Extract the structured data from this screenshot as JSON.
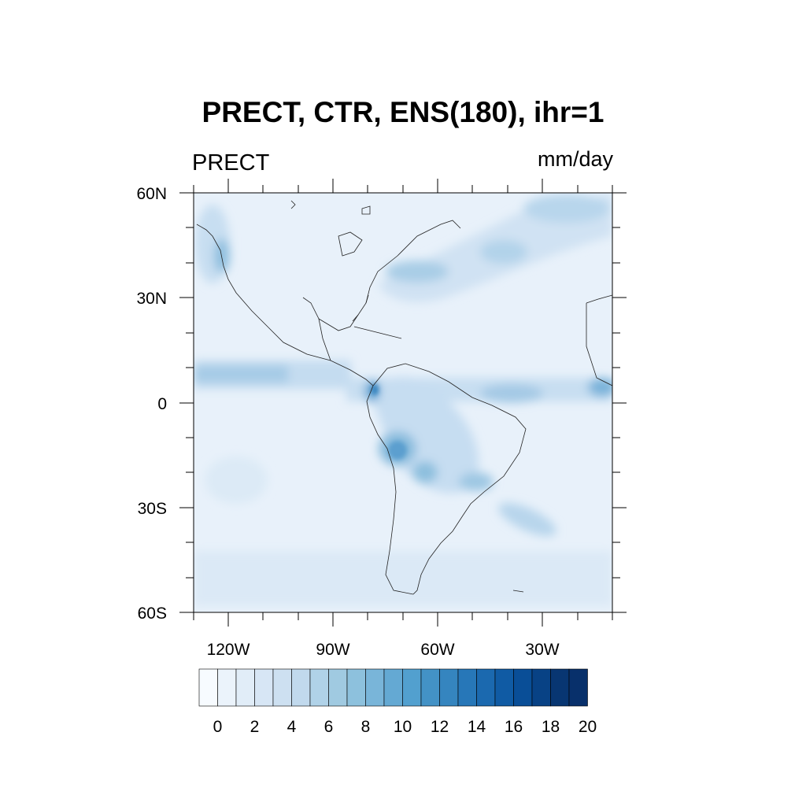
{
  "title": "PRECT, CTR, ENS(180), ihr=1",
  "left_label": "PRECT",
  "right_label": "mm/day",
  "map": {
    "lat_labels": [
      "60N",
      "30N",
      "0",
      "30S",
      "60S"
    ],
    "lon_labels": [
      "120W",
      "90W",
      "60W",
      "30W"
    ]
  },
  "colorbar": {
    "labels": [
      "0",
      "2",
      "4",
      "6",
      "8",
      "10",
      "12",
      "14",
      "16",
      "18",
      "20"
    ],
    "colors": [
      "#f7fbff",
      "#ebf3fb",
      "#e1edf8",
      "#d7e6f5",
      "#cde0f1",
      "#c1d9ed",
      "#b0d2e8",
      "#a0cae1",
      "#8dc1dd",
      "#79b5d9",
      "#64a9d3",
      "#52a0cf",
      "#4392c6",
      "#3585bf",
      "#2777b8",
      "#1b69af",
      "#105ba4",
      "#094e97",
      "#084285",
      "#083672",
      "#08306b"
    ]
  }
}
